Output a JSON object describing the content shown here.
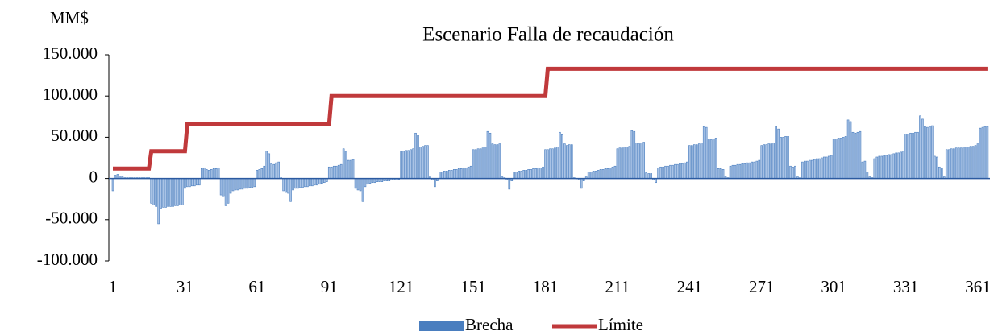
{
  "chart_data": {
    "type": "bar_line",
    "title": "Escenario Falla de recaudación",
    "y_axis_label": "MM$",
    "categories": [
      "1",
      null,
      null,
      null,
      null,
      null,
      null,
      null,
      null,
      null,
      null,
      null,
      null,
      null,
      null,
      null,
      null,
      null,
      null,
      null,
      null,
      null,
      null,
      null,
      null,
      null,
      null,
      null,
      null,
      null,
      "31",
      null,
      null,
      null,
      null,
      null,
      null,
      null,
      null,
      null,
      null,
      null,
      null,
      null,
      null,
      null,
      null,
      null,
      null,
      null,
      null,
      null,
      null,
      null,
      null,
      null,
      null,
      null,
      null,
      null,
      "61",
      null,
      null,
      null,
      null,
      null,
      null,
      null,
      null,
      null,
      null,
      null,
      null,
      null,
      null,
      null,
      null,
      null,
      null,
      null,
      null,
      null,
      null,
      null,
      null,
      null,
      null,
      null,
      null,
      null,
      "91",
      null,
      null,
      null,
      null,
      null,
      null,
      null,
      null,
      null,
      null,
      null,
      null,
      null,
      null,
      null,
      null,
      null,
      null,
      null,
      null,
      null,
      null,
      null,
      null,
      null,
      null,
      null,
      null,
      null,
      "121",
      null,
      null,
      null,
      null,
      null,
      null,
      null,
      null,
      null,
      null,
      null,
      null,
      null,
      null,
      null,
      null,
      null,
      null,
      null,
      null,
      null,
      null,
      null,
      null,
      null,
      null,
      null,
      null,
      null,
      "151",
      null,
      null,
      null,
      null,
      null,
      null,
      null,
      null,
      null,
      null,
      null,
      null,
      null,
      null,
      null,
      null,
      null,
      null,
      null,
      null,
      null,
      null,
      null,
      null,
      null,
      null,
      null,
      null,
      null,
      "181",
      null,
      null,
      null,
      null,
      null,
      null,
      null,
      null,
      null,
      null,
      null,
      null,
      null,
      null,
      null,
      null,
      null,
      null,
      null,
      null,
      null,
      null,
      null,
      null,
      null,
      null,
      null,
      null,
      null,
      "211",
      null,
      null,
      null,
      null,
      null,
      null,
      null,
      null,
      null,
      null,
      null,
      null,
      null,
      null,
      null,
      null,
      null,
      null,
      null,
      null,
      null,
      null,
      null,
      null,
      null,
      null,
      null,
      null,
      null,
      "241",
      null,
      null,
      null,
      null,
      null,
      null,
      null,
      null,
      null,
      null,
      null,
      null,
      null,
      null,
      null,
      null,
      null,
      null,
      null,
      null,
      null,
      null,
      null,
      null,
      null,
      null,
      null,
      null,
      null,
      "271",
      null,
      null,
      null,
      null,
      null,
      null,
      null,
      null,
      null,
      null,
      null,
      null,
      null,
      null,
      null,
      null,
      null,
      null,
      null,
      null,
      null,
      null,
      null,
      null,
      null,
      null,
      null,
      null,
      null,
      "301",
      null,
      null,
      null,
      null,
      null,
      null,
      null,
      null,
      null,
      null,
      null,
      null,
      null,
      null,
      null,
      null,
      null,
      null,
      null,
      null,
      null,
      null,
      null,
      null,
      null,
      null,
      null,
      null,
      null,
      "331",
      null,
      null,
      null,
      null,
      null,
      null,
      null,
      null,
      null,
      null,
      null,
      null,
      null,
      null,
      null,
      null,
      null,
      null,
      null,
      null,
      null,
      null,
      null,
      null,
      null,
      null,
      null,
      null,
      null,
      "361",
      null,
      null,
      null,
      null
    ],
    "series": [
      {
        "name": "Brecha",
        "type": "bar",
        "color": "#4a7ebf",
        "values": [
          -15000,
          4000,
          5000,
          3000,
          2000,
          1000,
          1000,
          1000,
          1000,
          1000,
          1000,
          1000,
          1000,
          1000,
          1000,
          1000,
          -30000,
          -32000,
          -34000,
          -55000,
          -36000,
          -35000,
          -35000,
          -34000,
          -34000,
          -34000,
          -33000,
          -33000,
          -32000,
          -32000,
          -12000,
          -10000,
          -10000,
          -9000,
          -9000,
          -8000,
          -8000,
          12000,
          13000,
          11000,
          10000,
          11000,
          12000,
          12000,
          13000,
          -20000,
          -22000,
          -33000,
          -30000,
          -18000,
          -15000,
          -14000,
          -14000,
          -13000,
          -13000,
          -12000,
          -12000,
          -11000,
          -11000,
          -10000,
          10000,
          11000,
          12000,
          15000,
          33000,
          30000,
          18000,
          17000,
          19000,
          20000,
          1000,
          -15000,
          -17000,
          -18000,
          -28000,
          -14000,
          -12000,
          -12000,
          -11000,
          -11000,
          -10000,
          -10000,
          -9000,
          -9000,
          -8000,
          -8000,
          -7000,
          -6000,
          -5000,
          -4000,
          14000,
          14000,
          15000,
          15000,
          16000,
          17000,
          36000,
          33000,
          22000,
          22000,
          23000,
          -12000,
          -14000,
          -15000,
          -28000,
          -10000,
          -7000,
          -6000,
          -5000,
          -5000,
          -4000,
          -4000,
          -4000,
          -3000,
          -3000,
          -3000,
          -2000,
          -2000,
          -2000,
          -1000,
          33000,
          33000,
          34000,
          34000,
          35000,
          36000,
          55000,
          52000,
          38000,
          39000,
          40000,
          40000,
          2000,
          -2000,
          -10000,
          -3000,
          8000,
          8000,
          9000,
          9000,
          10000,
          10000,
          11000,
          11000,
          12000,
          12000,
          13000,
          13000,
          14000,
          15000,
          35000,
          35000,
          36000,
          36000,
          37000,
          38000,
          57000,
          55000,
          42000,
          41000,
          41000,
          42000,
          2000,
          1000,
          -2000,
          -13000,
          -3000,
          8000,
          8000,
          9000,
          9000,
          10000,
          10000,
          11000,
          11000,
          12000,
          12000,
          13000,
          13000,
          14000,
          35000,
          35000,
          36000,
          36000,
          37000,
          38000,
          56000,
          53000,
          42000,
          40000,
          41000,
          41000,
          1000,
          0,
          -2000,
          -12000,
          -3000,
          2000,
          8000,
          8000,
          9000,
          9000,
          10000,
          11000,
          11000,
          12000,
          12000,
          13000,
          14000,
          15000,
          36000,
          37000,
          37000,
          38000,
          38000,
          39000,
          58000,
          57000,
          43000,
          42000,
          43000,
          44000,
          7000,
          6000,
          6000,
          -2000,
          -5000,
          13000,
          14000,
          14000,
          15000,
          15000,
          16000,
          16000,
          17000,
          17000,
          18000,
          18000,
          19000,
          20000,
          40000,
          40000,
          41000,
          41000,
          42000,
          43000,
          63000,
          62000,
          48000,
          47000,
          48000,
          49000,
          12000,
          12000,
          11000,
          2000,
          1000,
          15000,
          16000,
          16000,
          17000,
          17000,
          18000,
          18000,
          19000,
          19000,
          20000,
          20000,
          21000,
          22000,
          40000,
          41000,
          41000,
          42000,
          42000,
          43000,
          63000,
          60000,
          50000,
          50000,
          51000,
          51000,
          15000,
          14000,
          15000,
          2000,
          1000,
          20000,
          21000,
          21000,
          22000,
          22000,
          23000,
          24000,
          24000,
          25000,
          26000,
          26000,
          27000,
          28000,
          48000,
          48000,
          49000,
          49000,
          50000,
          51000,
          71000,
          69000,
          56000,
          55000,
          56000,
          57000,
          20000,
          21000,
          8000,
          2000,
          1000,
          24000,
          26000,
          27000,
          27000,
          28000,
          28000,
          29000,
          29000,
          30000,
          31000,
          31000,
          32000,
          33000,
          54000,
          54000,
          55000,
          55000,
          56000,
          56000,
          76000,
          72000,
          63000,
          62000,
          63000,
          64000,
          27000,
          26000,
          14000,
          13000,
          2000,
          35000,
          35000,
          36000,
          36000,
          37000,
          37000,
          37000,
          38000,
          38000,
          38000,
          39000,
          39000,
          40000,
          42000,
          61000,
          62000,
          63000,
          63000
        ]
      },
      {
        "name": "Límite",
        "type": "line",
        "color": "#c0393b",
        "values": [
          12000,
          12000,
          12000,
          12000,
          12000,
          12000,
          12000,
          12000,
          12000,
          12000,
          12000,
          12000,
          12000,
          12000,
          12000,
          12000,
          33000,
          33000,
          33000,
          33000,
          33000,
          33000,
          33000,
          33000,
          33000,
          33000,
          33000,
          33000,
          33000,
          33000,
          33000,
          66000,
          66000,
          66000,
          66000,
          66000,
          66000,
          66000,
          66000,
          66000,
          66000,
          66000,
          66000,
          66000,
          66000,
          66000,
          66000,
          66000,
          66000,
          66000,
          66000,
          66000,
          66000,
          66000,
          66000,
          66000,
          66000,
          66000,
          66000,
          66000,
          66000,
          66000,
          66000,
          66000,
          66000,
          66000,
          66000,
          66000,
          66000,
          66000,
          66000,
          66000,
          66000,
          66000,
          66000,
          66000,
          66000,
          66000,
          66000,
          66000,
          66000,
          66000,
          66000,
          66000,
          66000,
          66000,
          66000,
          66000,
          66000,
          66000,
          66000,
          100000,
          100000,
          100000,
          100000,
          100000,
          100000,
          100000,
          100000,
          100000,
          100000,
          100000,
          100000,
          100000,
          100000,
          100000,
          100000,
          100000,
          100000,
          100000,
          100000,
          100000,
          100000,
          100000,
          100000,
          100000,
          100000,
          100000,
          100000,
          100000,
          100000,
          100000,
          100000,
          100000,
          100000,
          100000,
          100000,
          100000,
          100000,
          100000,
          100000,
          100000,
          100000,
          100000,
          100000,
          100000,
          100000,
          100000,
          100000,
          100000,
          100000,
          100000,
          100000,
          100000,
          100000,
          100000,
          100000,
          100000,
          100000,
          100000,
          100000,
          100000,
          100000,
          100000,
          100000,
          100000,
          100000,
          100000,
          100000,
          100000,
          100000,
          100000,
          100000,
          100000,
          100000,
          100000,
          100000,
          100000,
          100000,
          100000,
          100000,
          100000,
          100000,
          100000,
          100000,
          100000,
          100000,
          100000,
          100000,
          100000,
          100000,
          133000,
          133000,
          133000,
          133000,
          133000,
          133000,
          133000,
          133000,
          133000,
          133000,
          133000,
          133000,
          133000,
          133000,
          133000,
          133000,
          133000,
          133000,
          133000,
          133000,
          133000,
          133000,
          133000,
          133000,
          133000,
          133000,
          133000,
          133000,
          133000,
          133000,
          133000,
          133000,
          133000,
          133000,
          133000,
          133000,
          133000,
          133000,
          133000,
          133000,
          133000,
          133000,
          133000,
          133000,
          133000,
          133000,
          133000,
          133000,
          133000,
          133000,
          133000,
          133000,
          133000,
          133000,
          133000,
          133000,
          133000,
          133000,
          133000,
          133000,
          133000,
          133000,
          133000,
          133000,
          133000,
          133000,
          133000,
          133000,
          133000,
          133000,
          133000,
          133000,
          133000,
          133000,
          133000,
          133000,
          133000,
          133000,
          133000,
          133000,
          133000,
          133000,
          133000,
          133000,
          133000,
          133000,
          133000,
          133000,
          133000,
          133000,
          133000,
          133000,
          133000,
          133000,
          133000,
          133000,
          133000,
          133000,
          133000,
          133000,
          133000,
          133000,
          133000,
          133000,
          133000,
          133000,
          133000,
          133000,
          133000,
          133000,
          133000,
          133000,
          133000,
          133000,
          133000,
          133000,
          133000,
          133000,
          133000,
          133000,
          133000,
          133000,
          133000,
          133000,
          133000,
          133000,
          133000,
          133000,
          133000,
          133000,
          133000,
          133000,
          133000,
          133000,
          133000,
          133000,
          133000,
          133000,
          133000,
          133000,
          133000,
          133000,
          133000,
          133000,
          133000,
          133000,
          133000,
          133000,
          133000,
          133000,
          133000,
          133000,
          133000,
          133000,
          133000,
          133000,
          133000,
          133000,
          133000,
          133000,
          133000,
          133000,
          133000,
          133000,
          133000,
          133000,
          133000,
          133000,
          133000,
          133000,
          133000,
          133000,
          133000,
          133000,
          133000,
          133000,
          133000,
          133000,
          133000,
          133000,
          133000,
          133000,
          133000,
          133000
        ]
      }
    ],
    "ylim": [
      -100000,
      150000
    ],
    "yticks": [
      {
        "value": 150000,
        "label": "150.000"
      },
      {
        "value": 100000,
        "label": "100.000"
      },
      {
        "value": 50000,
        "label": "50.000"
      },
      0,
      {
        "value": -50000,
        "label": "-50.000"
      },
      {
        "value": -100000,
        "label": "-100.000"
      }
    ],
    "legend": "bottom"
  }
}
